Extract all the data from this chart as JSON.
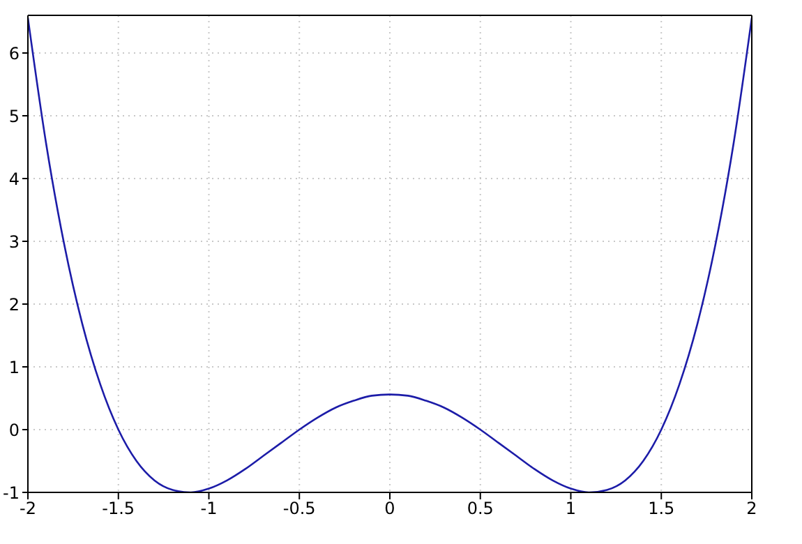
{
  "chart_data": {
    "type": "line",
    "x": [
      -2,
      -1.9,
      -1.8,
      -1.7,
      -1.6,
      -1.5,
      -1.4,
      -1.3,
      -1.2,
      -1.1,
      -1,
      -0.9,
      -0.8,
      -0.7,
      -0.6,
      -0.5,
      -0.4,
      -0.3,
      -0.2,
      -0.1,
      0,
      0.1,
      0.2,
      0.3,
      0.4,
      0.5,
      0.6,
      0.7,
      0.8,
      0.9,
      1,
      1.1,
      1.2,
      1.3,
      1.4,
      1.5,
      1.6,
      1.7,
      1.8,
      1.9,
      2
    ],
    "series": [
      {
        "color": "#1c1ca8",
        "values": [
          6.56,
          4.57,
          2.96,
          1.69,
          0.72,
          0,
          -0.5,
          -0.81,
          -0.96,
          -1,
          -0.94,
          -0.81,
          -0.63,
          -0.42,
          -0.21,
          0,
          0.19,
          0.35,
          0.46,
          0.54,
          0.56,
          0.54,
          0.46,
          0.35,
          0.19,
          0,
          -0.21,
          -0.42,
          -0.63,
          -0.81,
          -0.94,
          -1,
          -0.96,
          -0.81,
          -0.5,
          0,
          0.72,
          1.69,
          2.96,
          4.57,
          6.56
        ]
      }
    ],
    "xlim": [
      -2,
      2
    ],
    "xticks": [
      -2,
      -1.5,
      -1,
      -0.5,
      0,
      0.5,
      1,
      1.5,
      2
    ],
    "ylim": [
      -1,
      6.6
    ],
    "yticks": [
      -1,
      0,
      1,
      2,
      3,
      4,
      5,
      6
    ],
    "grid": true,
    "marker": "none",
    "line_style": "solid"
  }
}
